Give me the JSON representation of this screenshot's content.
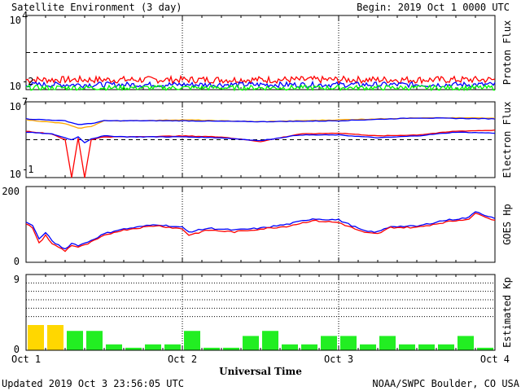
{
  "header": {
    "title": "Satellite Environment (3 day)",
    "begin": "Begin:  2019 Oct 1 0000 UTC"
  },
  "footer": {
    "updated": "Updated 2019 Oct  3 23:56:05 UTC",
    "credit": "NOAA/SWPC Boulder, CO USA",
    "xlabel": "Universal Time"
  },
  "x_ticks": [
    "Oct 1",
    "Oct 2",
    "Oct 3",
    "Oct 4"
  ],
  "colors": {
    "red": "#ff0000",
    "blue": "#0000ff",
    "green": "#00ff00",
    "orange": "#ffa500",
    "yellow": "#ffd700",
    "lime": "#22ee22"
  },
  "chart_data": [
    {
      "type": "line",
      "ylabel": "Proton Flux",
      "yscale": "log",
      "ylim_exp": [
        -2,
        4
      ],
      "y_tick_labels": [
        {
          "base": "10",
          "exp": "4"
        },
        {
          "base": "10",
          "exp": "-2"
        }
      ],
      "threshold_exp": 1,
      "series": [
        {
          "color": "red",
          "mean_exp": -1.2,
          "noise": 0.28
        },
        {
          "color": "blue",
          "mean_exp": -1.6,
          "noise": 0.22
        },
        {
          "color": "green",
          "mean_exp": -1.85,
          "noise": 0.2
        }
      ]
    },
    {
      "type": "line",
      "ylabel": "Electron Flux",
      "yscale": "log",
      "ylim_exp": [
        -1,
        7
      ],
      "y_tick_labels": [
        {
          "base": "10",
          "exp": "7"
        },
        {
          "base": "10",
          "exp": "-1"
        }
      ],
      "threshold_exp": 3,
      "series": [
        {
          "color": "orange",
          "hours": [
            0,
            6,
            8,
            10,
            12,
            16,
            24,
            36,
            48,
            60,
            72
          ],
          "exp": [
            5.1,
            4.7,
            4.2,
            4.4,
            5.0,
            5.0,
            5.1,
            4.9,
            5.1,
            5.3,
            5.3
          ]
        },
        {
          "color": "blue",
          "hours": [
            0,
            6,
            8,
            10,
            12,
            16,
            24,
            36,
            48,
            60,
            72
          ],
          "exp": [
            5.2,
            5.0,
            4.6,
            4.7,
            5.0,
            5.0,
            5.0,
            4.9,
            5.0,
            5.3,
            5.2
          ]
        },
        {
          "color": "red",
          "hours": [
            0,
            4,
            6,
            7,
            8,
            9,
            10,
            12,
            16,
            24,
            30,
            36,
            42,
            48,
            54,
            60,
            66,
            72
          ],
          "exp": [
            3.9,
            3.6,
            3.0,
            -1.0,
            3.2,
            -1.0,
            3.0,
            3.3,
            3.3,
            3.4,
            3.3,
            2.8,
            3.6,
            3.7,
            3.4,
            3.5,
            3.9,
            4.0
          ]
        },
        {
          "color": "blue",
          "hours": [
            0,
            4,
            6,
            7,
            8,
            9,
            10,
            12,
            16,
            24,
            30,
            36,
            42,
            48,
            54,
            60,
            66,
            72
          ],
          "exp": [
            3.8,
            3.6,
            3.2,
            3.0,
            3.3,
            2.7,
            3.1,
            3.4,
            3.3,
            3.3,
            3.2,
            2.9,
            3.5,
            3.5,
            3.2,
            3.4,
            3.8,
            3.7
          ]
        }
      ]
    },
    {
      "type": "line",
      "ylabel": "GOES Hp",
      "ylim": [
        0,
        200
      ],
      "y_tick_labels": [
        "200",
        "0"
      ],
      "series": [
        {
          "color": "blue",
          "hours": [
            0,
            1,
            2,
            3,
            4,
            5,
            6,
            7,
            8,
            9,
            10,
            12,
            14,
            16,
            20,
            24,
            25,
            28,
            32,
            36,
            40,
            44,
            48,
            52,
            54,
            56,
            60,
            64,
            68,
            69,
            70,
            72
          ],
          "values": [
            105,
            98,
            60,
            80,
            55,
            45,
            35,
            50,
            45,
            50,
            58,
            75,
            85,
            90,
            100,
            92,
            80,
            90,
            85,
            90,
            100,
            115,
            112,
            82,
            80,
            95,
            95,
            110,
            118,
            135,
            128,
            115
          ]
        },
        {
          "color": "red",
          "hours": [
            0,
            1,
            2,
            3,
            4,
            5,
            6,
            7,
            8,
            9,
            10,
            12,
            14,
            16,
            20,
            24,
            25,
            28,
            32,
            36,
            40,
            44,
            48,
            52,
            54,
            56,
            60,
            64,
            68,
            69,
            70,
            72
          ],
          "values": [
            100,
            92,
            50,
            72,
            48,
            40,
            30,
            45,
            40,
            45,
            53,
            70,
            82,
            88,
            97,
            88,
            72,
            85,
            80,
            88,
            95,
            110,
            105,
            78,
            75,
            92,
            92,
            105,
            115,
            128,
            125,
            110
          ]
        }
      ]
    },
    {
      "type": "bar",
      "ylabel": "Estimated Kp",
      "ylim": [
        0,
        9
      ],
      "y_tick_labels": [
        "9",
        "0"
      ],
      "values": [
        3,
        3,
        2.3,
        2.3,
        0.7,
        0.3,
        0.7,
        0.7,
        2.3,
        0.3,
        0.3,
        1.7,
        2.3,
        0.7,
        0.7,
        1.7,
        1.7,
        0.7,
        1.7,
        0.7,
        0.7,
        0.7,
        1.7,
        0.3
      ]
    }
  ]
}
